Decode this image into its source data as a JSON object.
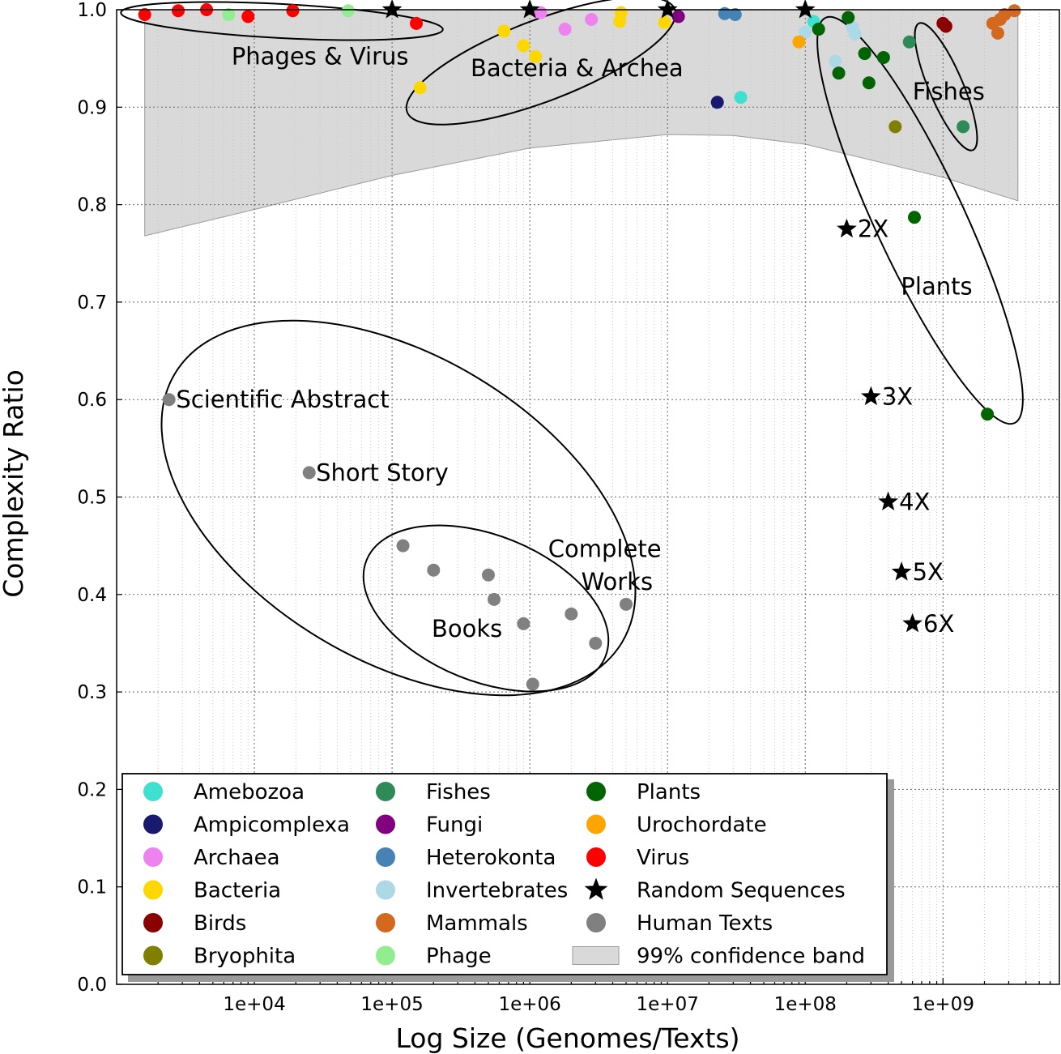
{
  "chart_data": {
    "type": "scatter",
    "xlabel": "Log Size (Genomes/Texts)",
    "ylabel": "Complexity Ratio",
    "xscale": "log",
    "xlim": [
      1000,
      7000000000
    ],
    "ylim": [
      0.0,
      1.0
    ],
    "grid": true,
    "legend_position": "lower-left",
    "x_ticks": [
      {
        "value": 10000,
        "label": "1e+04"
      },
      {
        "value": 100000,
        "label": "1e+05"
      },
      {
        "value": 1000000,
        "label": "1e+06"
      },
      {
        "value": 10000000,
        "label": "1e+07"
      },
      {
        "value": 100000000,
        "label": "1e+08"
      },
      {
        "value": 1000000000,
        "label": "1e+09"
      }
    ],
    "y_ticks": [
      {
        "value": 0.0,
        "label": "0.0"
      },
      {
        "value": 0.1,
        "label": "0.1"
      },
      {
        "value": 0.2,
        "label": "0.2"
      },
      {
        "value": 0.3,
        "label": "0.3"
      },
      {
        "value": 0.4,
        "label": "0.4"
      },
      {
        "value": 0.5,
        "label": "0.5"
      },
      {
        "value": 0.6,
        "label": "0.6"
      },
      {
        "value": 0.7,
        "label": "0.7"
      },
      {
        "value": 0.8,
        "label": "0.8"
      },
      {
        "value": 0.9,
        "label": "0.9"
      },
      {
        "value": 1.0,
        "label": "1.0"
      }
    ],
    "confidence_band": {
      "name": "99% confidence band",
      "color": "#d9d9d9",
      "x": [
        1600,
        10000,
        100000,
        1000000,
        10000000,
        30000000,
        100000000,
        1000000000,
        3500000000
      ],
      "lower": [
        0.768,
        0.795,
        0.83,
        0.858,
        0.872,
        0.871,
        0.862,
        0.828,
        0.804
      ],
      "upper": [
        1.0,
        1.0,
        1.0,
        1.0,
        1.0,
        1.0,
        1.0,
        1.0,
        1.0
      ]
    },
    "series": [
      {
        "name": "Amebozoa",
        "color": "#40e0d0",
        "marker": "circle",
        "points": [
          [
            34000000,
            0.91
          ],
          [
            115000000,
            0.988
          ]
        ]
      },
      {
        "name": "Ampicomplexa",
        "color": "#191970",
        "marker": "circle",
        "points": [
          [
            23000000,
            0.905
          ]
        ]
      },
      {
        "name": "Archaea",
        "color": "#ee82ee",
        "marker": "circle",
        "points": [
          [
            1200000,
            0.997
          ],
          [
            1800000,
            0.98
          ],
          [
            2800000,
            0.99
          ]
        ]
      },
      {
        "name": "Bacteria",
        "color": "#ffd700",
        "marker": "circle",
        "points": [
          [
            160000,
            0.92
          ],
          [
            650000,
            0.978
          ],
          [
            900000,
            0.963
          ],
          [
            1100000,
            0.952
          ],
          [
            4500000,
            0.988
          ],
          [
            4600000,
            0.997
          ],
          [
            9500000,
            0.987
          ]
        ]
      },
      {
        "name": "Birds",
        "color": "#8b0000",
        "marker": "circle",
        "points": [
          [
            1000000000,
            0.986
          ],
          [
            1050000000,
            0.983
          ]
        ]
      },
      {
        "name": "Bryophita",
        "color": "#808000",
        "marker": "circle",
        "points": [
          [
            450000000,
            0.88
          ]
        ]
      },
      {
        "name": "Fishes",
        "color": "#2e8b57",
        "marker": "circle",
        "points": [
          [
            570000000,
            0.967
          ],
          [
            1400000000,
            0.88
          ]
        ]
      },
      {
        "name": "Fungi",
        "color": "#800080",
        "marker": "circle",
        "points": [
          [
            12000000,
            0.993
          ]
        ]
      },
      {
        "name": "Heterokonta",
        "color": "#4682b4",
        "marker": "circle",
        "points": [
          [
            26000000,
            0.996
          ],
          [
            31000000,
            0.995
          ]
        ]
      },
      {
        "name": "Invertebrates",
        "color": "#add8e6",
        "marker": "circle",
        "points": [
          [
            100000000,
            0.977
          ],
          [
            165000000,
            0.947
          ],
          [
            220000000,
            0.982
          ],
          [
            230000000,
            0.975
          ]
        ]
      },
      {
        "name": "Mammals",
        "color": "#d2691e",
        "marker": "circle",
        "points": [
          [
            2300000000,
            0.986
          ],
          [
            2500000000,
            0.976
          ],
          [
            2600000000,
            0.99
          ],
          [
            2800000000,
            0.995
          ],
          [
            3300000000,
            0.999
          ]
        ]
      },
      {
        "name": "Phage",
        "color": "#90ee90",
        "marker": "circle",
        "points": [
          [
            6500,
            0.995
          ],
          [
            48000,
            0.999
          ]
        ]
      },
      {
        "name": "Plants",
        "color": "#006400",
        "marker": "circle",
        "points": [
          [
            125000000,
            0.98
          ],
          [
            175000000,
            0.935
          ],
          [
            205000000,
            0.992
          ],
          [
            270000000,
            0.955
          ],
          [
            290000000,
            0.925
          ],
          [
            370000000,
            0.951
          ],
          [
            620000000,
            0.787
          ],
          [
            2100000000,
            0.585
          ]
        ]
      },
      {
        "name": "Urochordate",
        "color": "#ffa500",
        "marker": "circle",
        "points": [
          [
            90000000,
            0.967
          ]
        ]
      },
      {
        "name": "Virus",
        "color": "#ff0000",
        "marker": "circle",
        "points": [
          [
            1600,
            0.995
          ],
          [
            2800,
            0.999
          ],
          [
            4500,
            1.0
          ],
          [
            9000,
            0.993
          ],
          [
            19000,
            0.999
          ],
          [
            150000,
            0.986
          ]
        ]
      },
      {
        "name": "Random Sequences",
        "color": "#000000",
        "marker": "star",
        "points": [
          [
            100000,
            1.0
          ],
          [
            1000000,
            1.0
          ],
          [
            10000000,
            1.0
          ],
          [
            100000000,
            1.0
          ],
          [
            200000000,
            0.775
          ],
          [
            300000000,
            0.603
          ],
          [
            400000000,
            0.495
          ],
          [
            500000000,
            0.423
          ],
          [
            600000000,
            0.37
          ]
        ]
      },
      {
        "name": "Human Texts",
        "color": "#808080",
        "marker": "circle",
        "points": [
          [
            2400,
            0.6
          ],
          [
            25000,
            0.525
          ],
          [
            120000,
            0.45
          ],
          [
            200000,
            0.425
          ],
          [
            500000,
            0.42
          ],
          [
            550000,
            0.395
          ],
          [
            900000,
            0.37
          ],
          [
            1050000,
            0.308
          ],
          [
            2000000,
            0.38
          ],
          [
            3000000,
            0.35
          ],
          [
            5000000,
            0.39
          ]
        ]
      }
    ],
    "annotations": [
      {
        "text": "Phages & Virus",
        "x": 30000,
        "y": 0.952
      },
      {
        "text": "Bacteria & Archea",
        "x": 2200000,
        "y": 0.94
      },
      {
        "text": "Fishes",
        "x": 1100000000,
        "y": 0.916
      },
      {
        "text": "Plants",
        "x": 900000000,
        "y": 0.716
      },
      {
        "text": "Scientific Abstract",
        "x": 2700,
        "y": 0.6
      },
      {
        "text": "Short Story",
        "x": 28000,
        "y": 0.525
      },
      {
        "text": "Books",
        "x": 350000,
        "y": 0.365
      },
      {
        "text": "Complete",
        "x": 3500000,
        "y": 0.447
      },
      {
        "text": "Works",
        "x": 4300000,
        "y": 0.413
      },
      {
        "text": "2X",
        "x": 240000000,
        "y": 0.775
      },
      {
        "text": "3X",
        "x": 360000000,
        "y": 0.603
      },
      {
        "text": "4X",
        "x": 480000000,
        "y": 0.495
      },
      {
        "text": "5X",
        "x": 600000000,
        "y": 0.423
      },
      {
        "text": "6X",
        "x": 720000000,
        "y": 0.37
      }
    ],
    "legend": {
      "columns": [
        [
          "Amebozoa",
          "Ampicomplexa",
          "Archaea",
          "Bacteria",
          "Birds",
          "Bryophita"
        ],
        [
          "Fishes",
          "Fungi",
          "Heterokonta",
          "Invertebrates",
          "Mammals",
          "Phage"
        ],
        [
          "Plants",
          "Urochordate",
          "Virus",
          "Random Sequences",
          "Human Texts",
          "99% confidence band"
        ]
      ]
    }
  }
}
